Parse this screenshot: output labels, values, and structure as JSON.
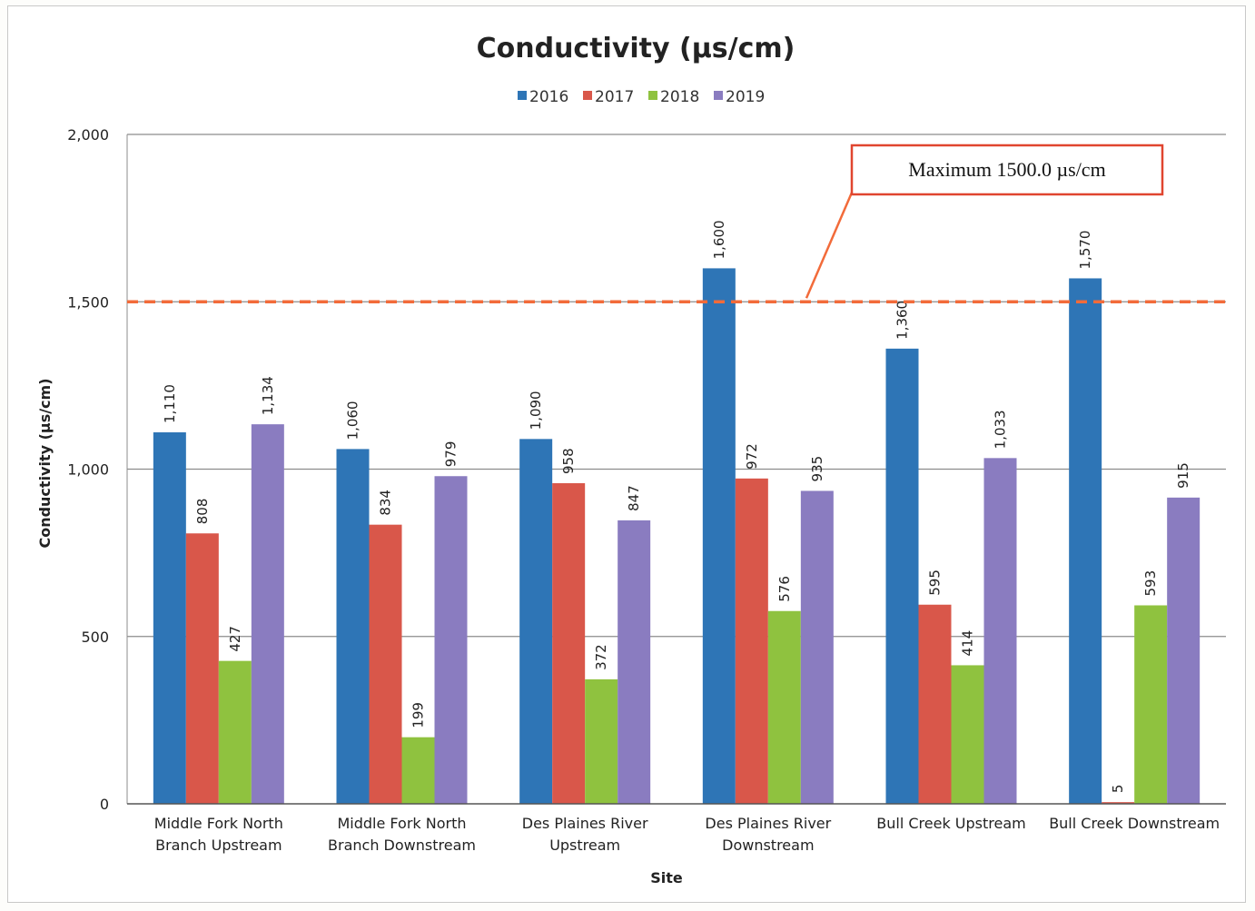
{
  "chart_data": {
    "type": "bar",
    "title": "Conductivity (µs/cm)",
    "xlabel": "Site",
    "ylabel": "Conductivity (µs/cm)",
    "ylim": [
      0,
      2000
    ],
    "yticks": [
      0,
      500,
      1000,
      1500,
      2000
    ],
    "ytick_labels": [
      "0",
      "500",
      "1,000",
      "1,500",
      "2,000"
    ],
    "grid": true,
    "legend_position": "top",
    "categories": [
      [
        "Middle Fork North",
        "Branch Upstream"
      ],
      [
        "Middle Fork North",
        "Branch Downstream"
      ],
      [
        "Des Plaines River",
        "Upstream"
      ],
      [
        "Des Plaines River",
        "Downstream"
      ],
      [
        "Bull Creek Upstream"
      ],
      [
        "Bull Creek Downstream"
      ]
    ],
    "series": [
      {
        "name": "2016",
        "color": "#2e75b6",
        "values": [
          1110,
          1060,
          1090,
          1600,
          1360,
          1570
        ],
        "labels": [
          "1,110",
          "1,060",
          "1,090",
          "1,600",
          "1,360",
          "1,570"
        ]
      },
      {
        "name": "2017",
        "color": "#d9574a",
        "values": [
          808,
          834,
          958,
          972,
          595,
          5
        ],
        "labels": [
          "808",
          "834",
          "958",
          "972",
          "595",
          "5"
        ]
      },
      {
        "name": "2018",
        "color": "#8fc23f",
        "values": [
          427,
          199,
          372,
          576,
          414,
          593
        ],
        "labels": [
          "427",
          "199",
          "372",
          "576",
          "414",
          "593"
        ]
      },
      {
        "name": "2019",
        "color": "#8a7cc0",
        "values": [
          1134,
          979,
          847,
          935,
          1033,
          915
        ],
        "labels": [
          "1,134",
          "979",
          "847",
          "935",
          "1,033",
          "915"
        ]
      }
    ],
    "reference_line": {
      "value": 1500,
      "label": "Maximum 1500.0 µs/cm",
      "color": "#f26b3a"
    }
  }
}
